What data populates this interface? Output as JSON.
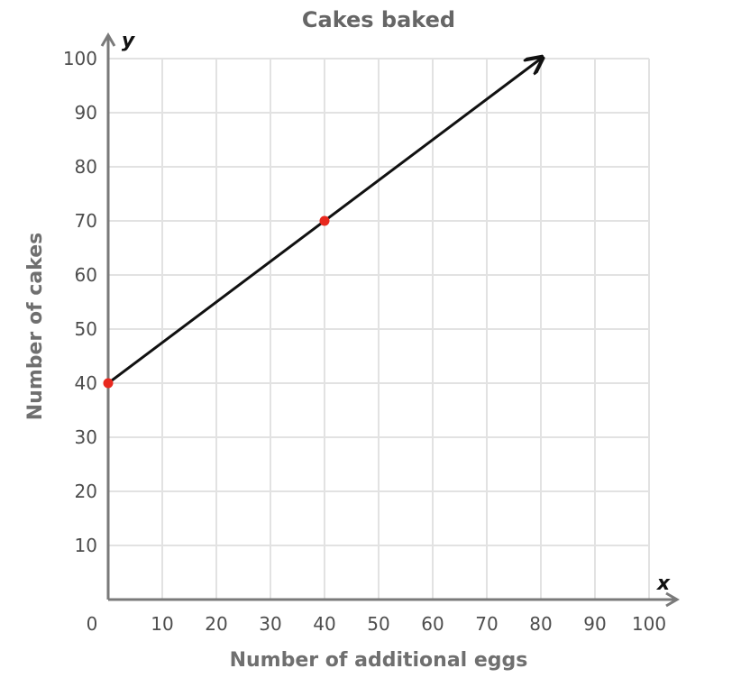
{
  "chart_data": {
    "type": "line",
    "title": "Cakes baked",
    "xlabel": "Number of additional eggs",
    "ylabel": "Number of cakes",
    "x_axis_letter": "x",
    "y_axis_letter": "y",
    "xlim": [
      0,
      100
    ],
    "ylim": [
      0,
      100
    ],
    "x_ticks": [
      "0",
      "10",
      "20",
      "30",
      "40",
      "50",
      "60",
      "70",
      "80",
      "90",
      "100"
    ],
    "y_ticks": [
      "10",
      "20",
      "30",
      "40",
      "50",
      "60",
      "70",
      "80",
      "90",
      "100"
    ],
    "grid": true,
    "series": [
      {
        "x": [
          0,
          80
        ],
        "y": [
          40,
          100
        ],
        "arrow_end": true,
        "color": "#111111"
      }
    ],
    "points": [
      {
        "x": 0,
        "y": 40,
        "color": "#e8281e"
      },
      {
        "x": 40,
        "y": 70,
        "color": "#e8281e"
      }
    ],
    "colors": {
      "grid": "#e2e2e2",
      "axis": "#7a7a7a"
    }
  }
}
